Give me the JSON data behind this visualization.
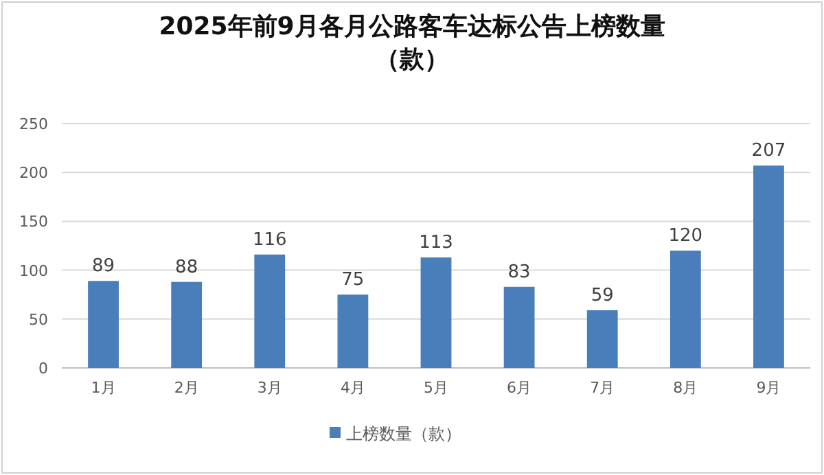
{
  "chart_data": {
    "type": "bar",
    "title": "2025年前9月各月公路客车达标公告上榜数量（款）",
    "categories": [
      "1月",
      "2月",
      "3月",
      "4月",
      "5月",
      "6月",
      "7月",
      "8月",
      "9月"
    ],
    "series": [
      {
        "name": "上榜数量（款）",
        "color": "#4a7ebb",
        "values": [
          89,
          88,
          116,
          75,
          113,
          83,
          59,
          120,
          207
        ]
      }
    ],
    "ylim": [
      0,
      250
    ],
    "yticks": [
      0,
      50,
      100,
      150,
      200,
      250
    ],
    "grid": "y",
    "legend": "bottom",
    "data_labels": true
  }
}
